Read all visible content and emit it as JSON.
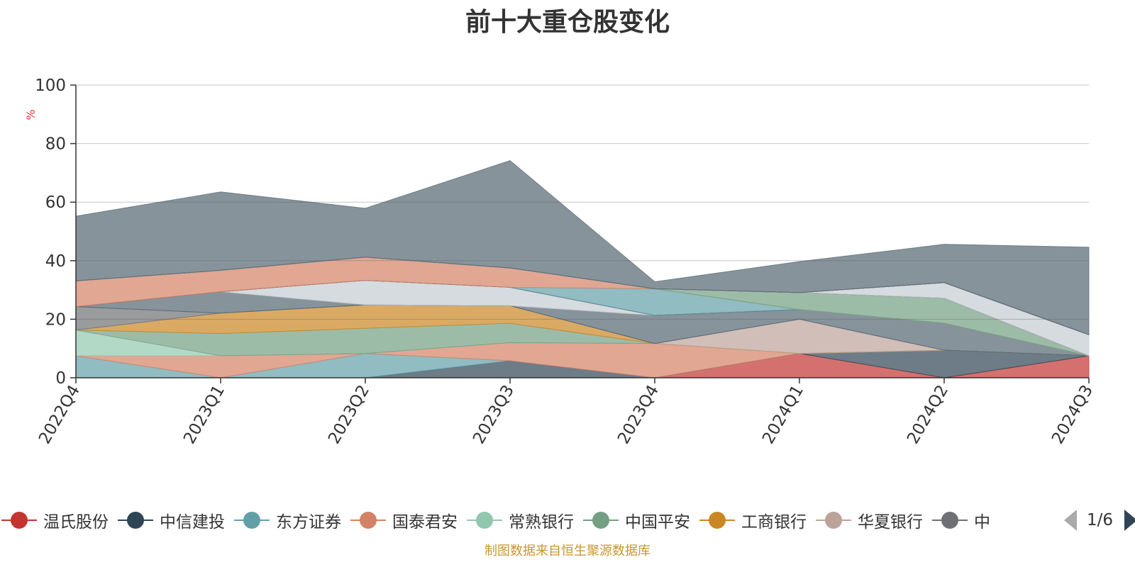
{
  "chart_data": {
    "type": "area",
    "stacked": true,
    "title": "前十大重仓股变化",
    "ylabel": "%",
    "ylim": [
      0,
      100
    ],
    "yticks": [
      0,
      20,
      40,
      60,
      80,
      100
    ],
    "grid": true,
    "legend_position": "bottom",
    "categories": [
      "2022Q4",
      "2023Q1",
      "2023Q2",
      "2023Q3",
      "2023Q4",
      "2024Q1",
      "2024Q2",
      "2024Q3"
    ],
    "series": [
      {
        "name": "温氏股份",
        "color": "#c23531",
        "values": [
          0,
          0,
          0,
          0,
          0,
          8.3,
          0,
          7.5
        ]
      },
      {
        "name": "中信建投",
        "color": "#2f4554",
        "values": [
          0,
          0,
          0,
          5.8,
          0,
          0,
          9.4,
          0
        ]
      },
      {
        "name": "东方证券",
        "color": "#61a0a8",
        "values": [
          7.5,
          0,
          8.3,
          0,
          0,
          0,
          0,
          0
        ]
      },
      {
        "name": "国泰君安",
        "color": "#d48265",
        "values": [
          0,
          7.5,
          0,
          6.2,
          11.7,
          0,
          0,
          0
        ]
      },
      {
        "name": "常熟银行",
        "color": "#91c7ae",
        "values": [
          8.8,
          0,
          0,
          0,
          0,
          0,
          0,
          0
        ]
      },
      {
        "name": "中国平安",
        "color": "#749f83",
        "values": [
          0,
          7.6,
          8.6,
          6.6,
          0,
          0,
          0,
          0
        ]
      },
      {
        "name": "工商银行",
        "color": "#ca8622",
        "values": [
          0,
          7.0,
          8.0,
          6.0,
          0,
          0,
          0,
          0
        ]
      },
      {
        "name": "华夏银行",
        "color": "#bda29a",
        "values": [
          0,
          0,
          0,
          0,
          0,
          11.7,
          0,
          0
        ]
      },
      {
        "name": "",
        "color": "#6e7074",
        "values": [
          8.0,
          0,
          0,
          0,
          0,
          0,
          0,
          0
        ]
      },
      {
        "name": "",
        "color": "#546570",
        "values": [
          0,
          7.3,
          0,
          0,
          9.6,
          3.3,
          9.2,
          0
        ]
      },
      {
        "name": "",
        "color": "#c4ccd3",
        "values": [
          0,
          0,
          8.4,
          6.3,
          0,
          0,
          0,
          0
        ]
      },
      {
        "name": "",
        "color": "#c23531",
        "values": [
          0,
          0,
          0,
          0,
          0,
          0,
          0,
          0
        ]
      },
      {
        "name": "",
        "color": "#2f4554",
        "values": [
          0,
          0,
          0,
          0,
          0,
          0,
          0,
          0
        ]
      },
      {
        "name": "",
        "color": "#61a0a8",
        "values": [
          0,
          0,
          0,
          0,
          9.1,
          0,
          0,
          0
        ]
      },
      {
        "name": "",
        "color": "#d48265",
        "values": [
          8.8,
          7.3,
          7.9,
          6.6,
          0,
          0,
          0,
          0
        ]
      },
      {
        "name": "",
        "color": "#91c7ae",
        "values": [
          0,
          0,
          0,
          0,
          0,
          0,
          0,
          0
        ]
      },
      {
        "name": "",
        "color": "#749f83",
        "values": [
          0,
          0,
          0,
          0,
          0,
          5.8,
          8.6,
          0
        ]
      },
      {
        "name": "",
        "color": "#ca8622",
        "values": [
          0,
          0,
          0,
          0,
          0,
          0,
          0,
          0
        ]
      },
      {
        "name": "",
        "color": "#bda29a",
        "values": [
          0,
          0,
          0,
          0,
          0,
          0,
          0,
          0
        ]
      },
      {
        "name": "",
        "color": "#6e7074",
        "values": [
          0,
          0,
          0,
          0,
          0,
          0,
          0,
          0
        ]
      },
      {
        "name": "",
        "color": "#546570",
        "values": [
          0,
          0,
          0,
          0,
          0,
          0,
          0,
          0
        ]
      },
      {
        "name": "",
        "color": "#c4ccd3",
        "values": [
          0,
          0,
          0,
          0,
          0,
          0,
          5.3,
          7.2
        ]
      },
      {
        "name": "",
        "color": "#c23531",
        "values": [
          0,
          0,
          0,
          0,
          0,
          0,
          0,
          0
        ]
      },
      {
        "name": "",
        "color": "#2f4554",
        "values": [
          0,
          0,
          0,
          0,
          0,
          0,
          0,
          0
        ]
      },
      {
        "name": "",
        "color": "#61a0a8",
        "values": [
          0,
          0,
          0,
          0,
          0,
          0,
          0,
          0
        ]
      },
      {
        "name": "",
        "color": "#d48265",
        "values": [
          0,
          0,
          0,
          0,
          0,
          0,
          0,
          0
        ]
      },
      {
        "name": "",
        "color": "#91c7ae",
        "values": [
          0,
          0,
          0,
          0,
          0,
          0,
          0,
          0
        ]
      },
      {
        "name": "",
        "color": "#749f83",
        "values": [
          0,
          0,
          0,
          0,
          0,
          0,
          0,
          0
        ]
      },
      {
        "name": "",
        "color": "#ca8622",
        "values": [
          0,
          0,
          0,
          0,
          0,
          0,
          0,
          0
        ]
      },
      {
        "name": "",
        "color": "#bda29a",
        "values": [
          0,
          0,
          0,
          0,
          0,
          0,
          0,
          0
        ]
      },
      {
        "name": "",
        "color": "#6e7074",
        "values": [
          0,
          0,
          0,
          0,
          0,
          0,
          0,
          0
        ]
      },
      {
        "name": "",
        "color": "#546570",
        "values": [
          0,
          0,
          0,
          0,
          0,
          0,
          0,
          0
        ]
      },
      {
        "name": "",
        "color": "#c4ccd3",
        "values": [
          0,
          0,
          0,
          0,
          0,
          0,
          0,
          0
        ]
      },
      {
        "name": "",
        "color": "#c23531",
        "values": [
          0,
          0,
          0,
          0,
          0,
          0,
          0,
          0
        ]
      },
      {
        "name": "",
        "color": "#2f4554",
        "values": [
          0,
          0,
          0,
          0,
          0,
          0,
          0,
          0
        ]
      },
      {
        "name": "",
        "color": "#61a0a8",
        "values": [
          0,
          0,
          0,
          0,
          0,
          0,
          0,
          0
        ]
      },
      {
        "name": "",
        "color": "#d48265",
        "values": [
          0,
          0,
          0,
          0,
          0,
          0,
          0,
          0
        ]
      },
      {
        "name": "",
        "color": "#91c7ae",
        "values": [
          0,
          0,
          0,
          0,
          0,
          0,
          0,
          0
        ]
      },
      {
        "name": "",
        "color": "#749f83",
        "values": [
          0,
          0,
          0,
          0,
          0,
          0,
          0,
          0
        ]
      },
      {
        "name": "",
        "color": "#ca8622",
        "values": [
          0,
          0,
          0,
          0,
          0,
          0,
          0,
          0
        ]
      },
      {
        "name": "",
        "color": "#bda29a",
        "values": [
          0,
          0,
          0,
          0,
          0,
          0,
          0,
          0
        ]
      },
      {
        "name": "",
        "color": "#6e7074",
        "values": [
          0,
          0,
          0,
          0,
          0,
          0,
          0,
          0
        ]
      },
      {
        "name": "",
        "color": "#546570",
        "values": [
          0,
          0,
          0,
          0,
          0,
          0,
          0,
          0
        ]
      },
      {
        "name": "",
        "color": "#c4ccd3",
        "values": [
          0,
          0,
          0,
          0,
          0,
          0,
          0,
          0
        ]
      },
      {
        "name": "",
        "color": "#546570",
        "values": [
          22.1,
          26.8,
          16.7,
          36.7,
          2.4,
          10.6,
          13.1,
          29.9
        ]
      }
    ]
  },
  "legend": {
    "visible_items": [
      {
        "label": "温氏股份",
        "color": "#c23531"
      },
      {
        "label": "中信建投",
        "color": "#2f4554"
      },
      {
        "label": "东方证券",
        "color": "#61a0a8"
      },
      {
        "label": "国泰君安",
        "color": "#d48265"
      },
      {
        "label": "常熟银行",
        "color": "#91c7ae"
      },
      {
        "label": "中国平安",
        "color": "#749f83"
      },
      {
        "label": "工商银行",
        "color": "#ca8622"
      },
      {
        "label": "华夏银行",
        "color": "#bda29a"
      },
      {
        "label": "中",
        "color": "#6e7074"
      }
    ],
    "page_indicator": "1/6"
  },
  "source_note": "制图数据来自恒生聚源数据库"
}
